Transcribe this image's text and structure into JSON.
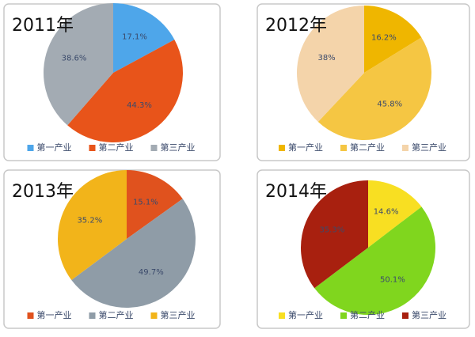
{
  "chart_data": [
    {
      "type": "pie",
      "title": "2011年",
      "categories": [
        "第一产业",
        "第二产业",
        "第三产业"
      ],
      "values": [
        17.1,
        44.3,
        38.6
      ],
      "value_labels": [
        "17.1%",
        "44.3%",
        "38.6%"
      ],
      "colors": [
        "#4ea6ea",
        "#e8541a",
        "#a3abb3"
      ],
      "legend": "bottom"
    },
    {
      "type": "pie",
      "title": "2012年",
      "categories": [
        "第一产业",
        "第二产业",
        "第三产业"
      ],
      "values": [
        16.2,
        45.8,
        38
      ],
      "value_labels": [
        "16.2%",
        "45.8%",
        "38%"
      ],
      "colors": [
        "#efb600",
        "#f5c643",
        "#f4d4aa"
      ],
      "legend": "bottom"
    },
    {
      "type": "pie",
      "title": "2013年",
      "categories": [
        "第一产业",
        "第二产业",
        "第三产业"
      ],
      "values": [
        15.1,
        49.7,
        35.2
      ],
      "value_labels": [
        "15.1%",
        "49.7%",
        "35.2%"
      ],
      "colors": [
        "#e0521e",
        "#8f9ca7",
        "#f2b41a"
      ],
      "legend": "bottom"
    },
    {
      "type": "pie",
      "title": "2014年",
      "categories": [
        "第一产业",
        "第二产业",
        "第三产业"
      ],
      "values": [
        14.6,
        50.1,
        35.3
      ],
      "value_labels": [
        "14.6%",
        "50.1%",
        "35.3%"
      ],
      "colors": [
        "#f8df22",
        "#80d61e",
        "#a8200f"
      ],
      "legend": "bottom"
    }
  ]
}
